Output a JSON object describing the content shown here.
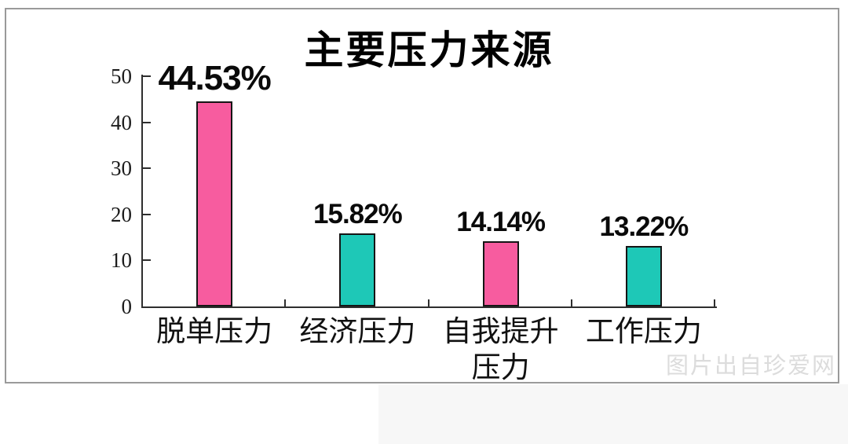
{
  "page": {
    "background": "#ffffff",
    "frame_border_color": "#9a9a9a",
    "watermark": "图片出自珍爱网"
  },
  "chart_data": {
    "type": "bar",
    "title": "主要压力来源",
    "categories": [
      "脱单压力",
      "经济压力",
      "自我提升\n压力",
      "工作压力"
    ],
    "values": [
      44.53,
      15.82,
      14.14,
      13.22
    ],
    "value_labels": [
      "44.53%",
      "15.82%",
      "14.14%",
      "13.22%"
    ],
    "bar_colors": [
      "#f75c9f",
      "#1ec8b7",
      "#f75c9f",
      "#1ec8b7"
    ],
    "bar_border_color": "#151515",
    "axis_color": "#2e2e2e",
    "y_ticks": [
      0,
      10,
      20,
      30,
      40,
      50
    ],
    "ylim": [
      0,
      50
    ],
    "xlabel": "",
    "ylabel": "",
    "grid": false,
    "legend": "none"
  }
}
